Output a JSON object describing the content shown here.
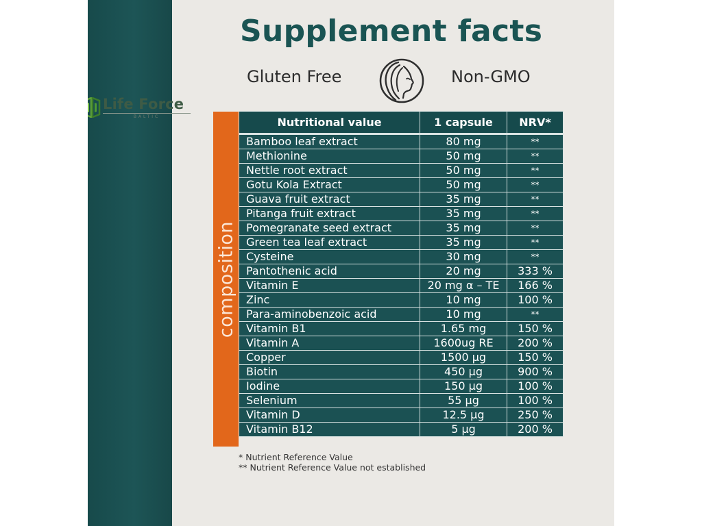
{
  "page": {
    "title": "Supplement facts",
    "badges": {
      "left": "Gluten Free",
      "right": "Non-GMO"
    },
    "icon": "woman-profile-icon",
    "brand": {
      "name": "Life Force",
      "sub": "BALTIC",
      "logo_color": "#3e5b45"
    },
    "side_label": "composition",
    "colors": {
      "teal": "#1b5153",
      "orange": "#e2671b",
      "title": "#1a5453",
      "background": "#ebe9e5"
    }
  },
  "table": {
    "headers": [
      "Nutritional value",
      "1 capsule",
      "NRV*"
    ],
    "rows": [
      {
        "name": "Bamboo leaf extract",
        "amount": "80 mg",
        "nrv": "**"
      },
      {
        "name": "Methionine",
        "amount": "50 mg",
        "nrv": "**"
      },
      {
        "name": "Nettle root extract",
        "amount": "50 mg",
        "nrv": "**"
      },
      {
        "name": "Gotu Kola Extract",
        "amount": "50 mg",
        "nrv": "**"
      },
      {
        "name": "Guava fruit extract",
        "amount": "35 mg",
        "nrv": "**"
      },
      {
        "name": "Pitanga fruit extract",
        "amount": "35 mg",
        "nrv": "**"
      },
      {
        "name": "Pomegranate seed extract",
        "amount": "35 mg",
        "nrv": "**"
      },
      {
        "name": "Green tea leaf extract",
        "amount": "35 mg",
        "nrv": "**"
      },
      {
        "name": "Cysteine",
        "amount": "30 mg",
        "nrv": "**"
      },
      {
        "name": "Pantothenic acid",
        "amount": "20 mg",
        "nrv": "333 %"
      },
      {
        "name": "Vitamin E",
        "amount": "20 mg α – TE",
        "nrv": "166 %"
      },
      {
        "name": "Zinc",
        "amount": "10 mg",
        "nrv": "100 %"
      },
      {
        "name": "Para-aminobenzoic acid",
        "amount": "10 mg",
        "nrv": "**"
      },
      {
        "name": "Vitamin B1",
        "amount": "1.65 mg",
        "nrv": "150 %"
      },
      {
        "name": "Vitamin A",
        "amount": "1600ug RE",
        "nrv": "200 %"
      },
      {
        "name": "Copper",
        "amount": "1500 µg",
        "nrv": "150 %"
      },
      {
        "name": "Biotin",
        "amount": "450 µg",
        "nrv": "900 %"
      },
      {
        "name": "Iodine",
        "amount": "150 µg",
        "nrv": "100 %"
      },
      {
        "name": "Selenium",
        "amount": "55 µg",
        "nrv": "100 %"
      },
      {
        "name": "Vitamin D",
        "amount": "12.5 µg",
        "nrv": "250 %"
      },
      {
        "name": "Vitamin B12",
        "amount": "5 µg",
        "nrv": "200 %"
      }
    ]
  },
  "footnotes": [
    "* Nutrient Reference Value",
    "** Nutrient Reference Value not established"
  ]
}
